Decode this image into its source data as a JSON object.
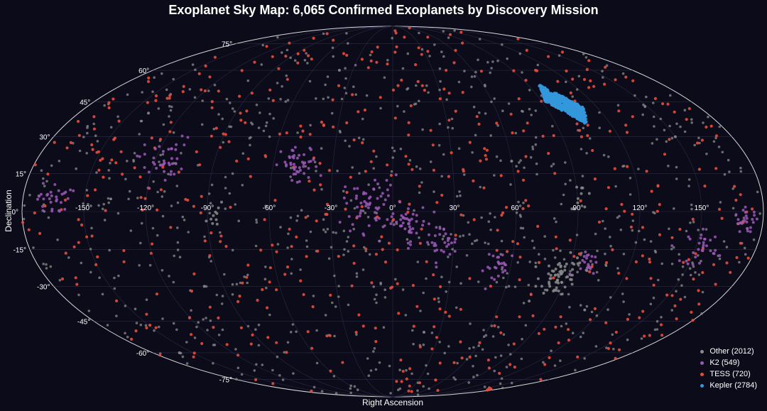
{
  "chart_data": {
    "type": "scatter",
    "projection": "mollweide",
    "title": "Exoplanet Sky Map: 6,065 Confirmed Exoplanets by Discovery Mission",
    "xlabel": "Right Ascension",
    "ylabel": "Declination",
    "xlim": [
      -180,
      180
    ],
    "ylim": [
      -90,
      90
    ],
    "grid": true,
    "legend_position": "bottom-right",
    "ra_ticks": [
      "-150°",
      "-120°",
      "-90°",
      "-60°",
      "-30°",
      "0°",
      "30°",
      "60°",
      "90°",
      "120°",
      "150°"
    ],
    "ra_tick_values": [
      -150,
      -120,
      -90,
      -60,
      -30,
      0,
      30,
      60,
      90,
      120,
      150
    ],
    "dec_ticks": [
      "75°",
      "60°",
      "45°",
      "30°",
      "15°",
      "0°",
      "-15°",
      "-30°",
      "-45°",
      "-60°",
      "-75°"
    ],
    "dec_tick_values": [
      75,
      60,
      45,
      30,
      15,
      0,
      -15,
      -30,
      -45,
      -60,
      -75
    ],
    "series": [
      {
        "name": "Other (2012)",
        "color": "#8c8c8c",
        "count": 2012,
        "clusters": [
          {
            "ra": 87,
            "dec": -26,
            "spread": 5,
            "n": 60
          },
          {
            "ra": -85,
            "dec": -2,
            "spread": 3,
            "n": 10
          },
          {
            "ra": 92,
            "dec": 6,
            "spread": 3,
            "n": 10
          }
        ],
        "sample_points": [
          [
            -140,
            40
          ],
          [
            -100,
            -30
          ],
          [
            -40,
            60
          ],
          [
            20,
            -50
          ],
          [
            60,
            20
          ],
          [
            110,
            -40
          ],
          [
            150,
            30
          ],
          [
            -160,
            -60
          ]
        ]
      },
      {
        "name": "K2 (549)",
        "color": "#9b59b6",
        "count": 549,
        "clusters": [
          {
            "ra": -165,
            "dec": 5,
            "spread": 4,
            "n": 30
          },
          {
            "ra": -117,
            "dec": 20,
            "spread": 6,
            "n": 40
          },
          {
            "ra": -47,
            "dec": 18,
            "spread": 5,
            "n": 45
          },
          {
            "ra": -10,
            "dec": 3,
            "spread": 7,
            "n": 60
          },
          {
            "ra": 7,
            "dec": -5,
            "spread": 5,
            "n": 40
          },
          {
            "ra": 24,
            "dec": -12,
            "spread": 4,
            "n": 30
          },
          {
            "ra": 55,
            "dec": -22,
            "spread": 4,
            "n": 25
          },
          {
            "ra": 100,
            "dec": -21,
            "spread": 3,
            "n": 20
          },
          {
            "ra": 153,
            "dec": -14,
            "spread": 4,
            "n": 30
          },
          {
            "ra": 172,
            "dec": -4,
            "spread": 3,
            "n": 25
          }
        ]
      },
      {
        "name": "TESS (720)",
        "color": "#e74c3c",
        "count": 720,
        "sample_points": [
          [
            -120,
            50
          ],
          [
            -80,
            -55
          ],
          [
            -20,
            70
          ],
          [
            40,
            60
          ],
          [
            80,
            -10
          ],
          [
            130,
            10
          ],
          [
            -150,
            -10
          ],
          [
            10,
            -70
          ]
        ]
      },
      {
        "name": "Kepler (2784)",
        "color": "#3498db",
        "count": 2784,
        "clusters": [
          {
            "ra": 102,
            "dec": 44,
            "spread": 4,
            "n": 400
          }
        ]
      }
    ]
  }
}
